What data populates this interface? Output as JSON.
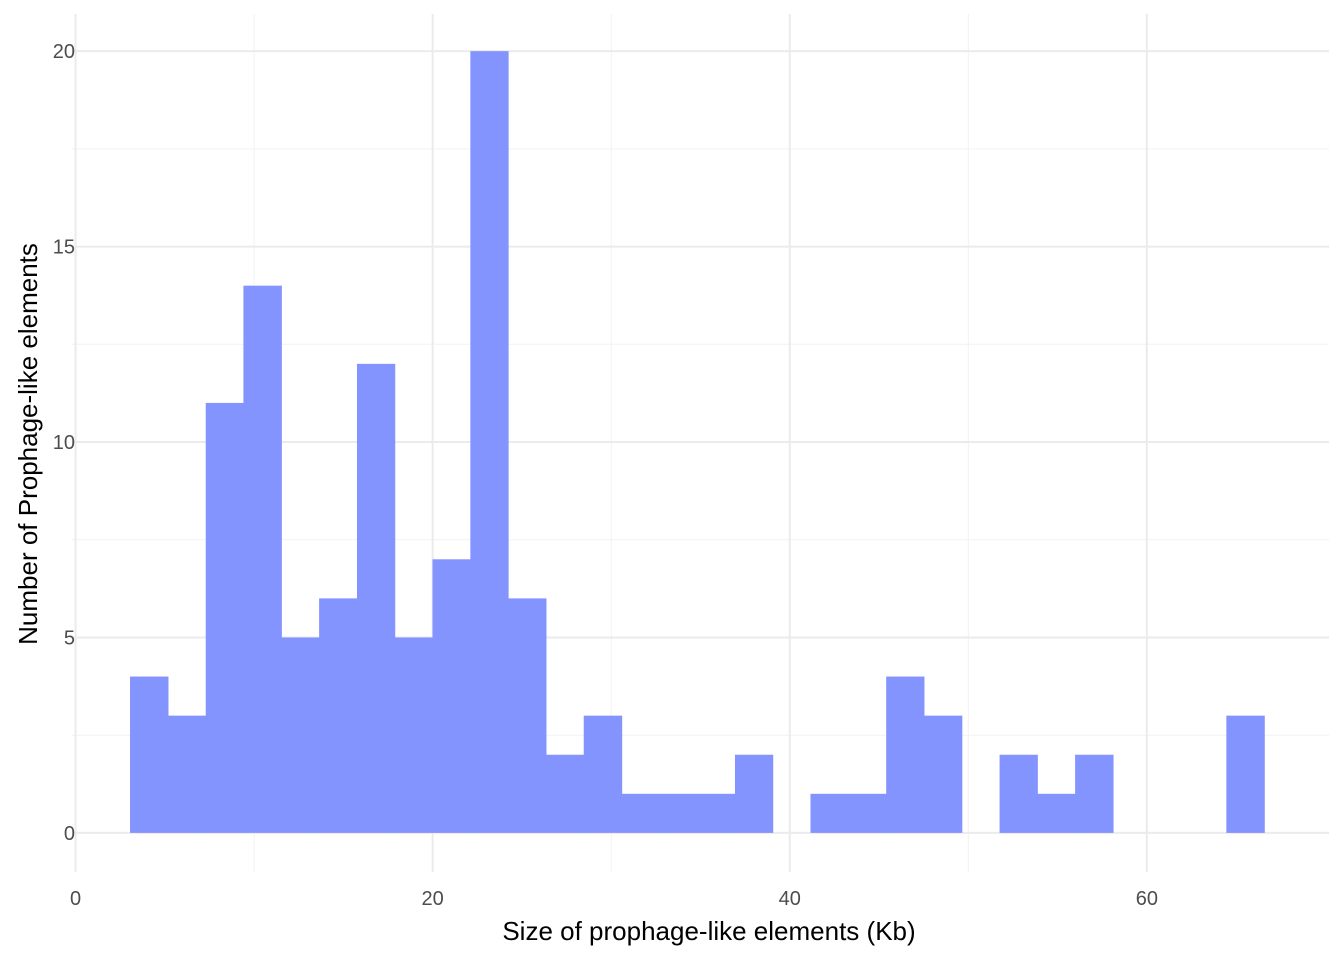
{
  "chart_data": {
    "type": "bar",
    "title": "",
    "xlabel": "Size of prophage-like elements (Kb)",
    "ylabel": "Number of Prophage-like elements",
    "xlim": [
      -0.2,
      70.2
    ],
    "ylim": [
      -1,
      20.95
    ],
    "x_ticks": [
      0,
      20,
      40,
      60
    ],
    "x_tick_labels": [
      "0",
      "20",
      "40",
      "60"
    ],
    "y_ticks": [
      0,
      5,
      10,
      15,
      20
    ],
    "y_tick_labels": [
      "0",
      "5",
      "10",
      "15",
      "20"
    ],
    "x_minor_ticks": [
      10,
      30,
      50
    ],
    "y_minor_ticks": [
      2.5,
      7.5,
      12.5,
      17.5
    ],
    "grid": true,
    "legend": "none",
    "bar_color": "#8494FF",
    "bins": [
      {
        "x0": 3.05,
        "x1": 5.17,
        "count": 4
      },
      {
        "x0": 5.17,
        "x1": 7.29,
        "count": 3
      },
      {
        "x0": 7.29,
        "x1": 9.4,
        "count": 11
      },
      {
        "x0": 9.4,
        "x1": 11.52,
        "count": 14
      },
      {
        "x0": 11.52,
        "x1": 13.64,
        "count": 5
      },
      {
        "x0": 13.64,
        "x1": 15.76,
        "count": 6
      },
      {
        "x0": 15.76,
        "x1": 17.87,
        "count": 12
      },
      {
        "x0": 17.87,
        "x1": 19.99,
        "count": 5
      },
      {
        "x0": 19.99,
        "x1": 22.11,
        "count": 7
      },
      {
        "x0": 22.11,
        "x1": 24.22,
        "count": 20
      },
      {
        "x0": 24.22,
        "x1": 26.34,
        "count": 6
      },
      {
        "x0": 26.34,
        "x1": 28.46,
        "count": 2
      },
      {
        "x0": 28.46,
        "x1": 30.58,
        "count": 3
      },
      {
        "x0": 30.58,
        "x1": 32.69,
        "count": 1
      },
      {
        "x0": 32.69,
        "x1": 34.81,
        "count": 1
      },
      {
        "x0": 34.81,
        "x1": 36.93,
        "count": 1
      },
      {
        "x0": 36.93,
        "x1": 39.04,
        "count": 2
      },
      {
        "x0": 39.04,
        "x1": 41.16,
        "count": 0
      },
      {
        "x0": 41.16,
        "x1": 43.28,
        "count": 1
      },
      {
        "x0": 43.28,
        "x1": 45.4,
        "count": 1
      },
      {
        "x0": 45.4,
        "x1": 47.51,
        "count": 4
      },
      {
        "x0": 47.51,
        "x1": 49.63,
        "count": 3
      },
      {
        "x0": 49.63,
        "x1": 51.75,
        "count": 0
      },
      {
        "x0": 51.75,
        "x1": 53.86,
        "count": 2
      },
      {
        "x0": 53.86,
        "x1": 55.98,
        "count": 1
      },
      {
        "x0": 55.98,
        "x1": 58.1,
        "count": 2
      },
      {
        "x0": 58.1,
        "x1": 60.22,
        "count": 0
      },
      {
        "x0": 60.22,
        "x1": 62.33,
        "count": 0
      },
      {
        "x0": 62.33,
        "x1": 64.45,
        "count": 0
      },
      {
        "x0": 64.45,
        "x1": 66.57,
        "count": 3
      }
    ]
  }
}
